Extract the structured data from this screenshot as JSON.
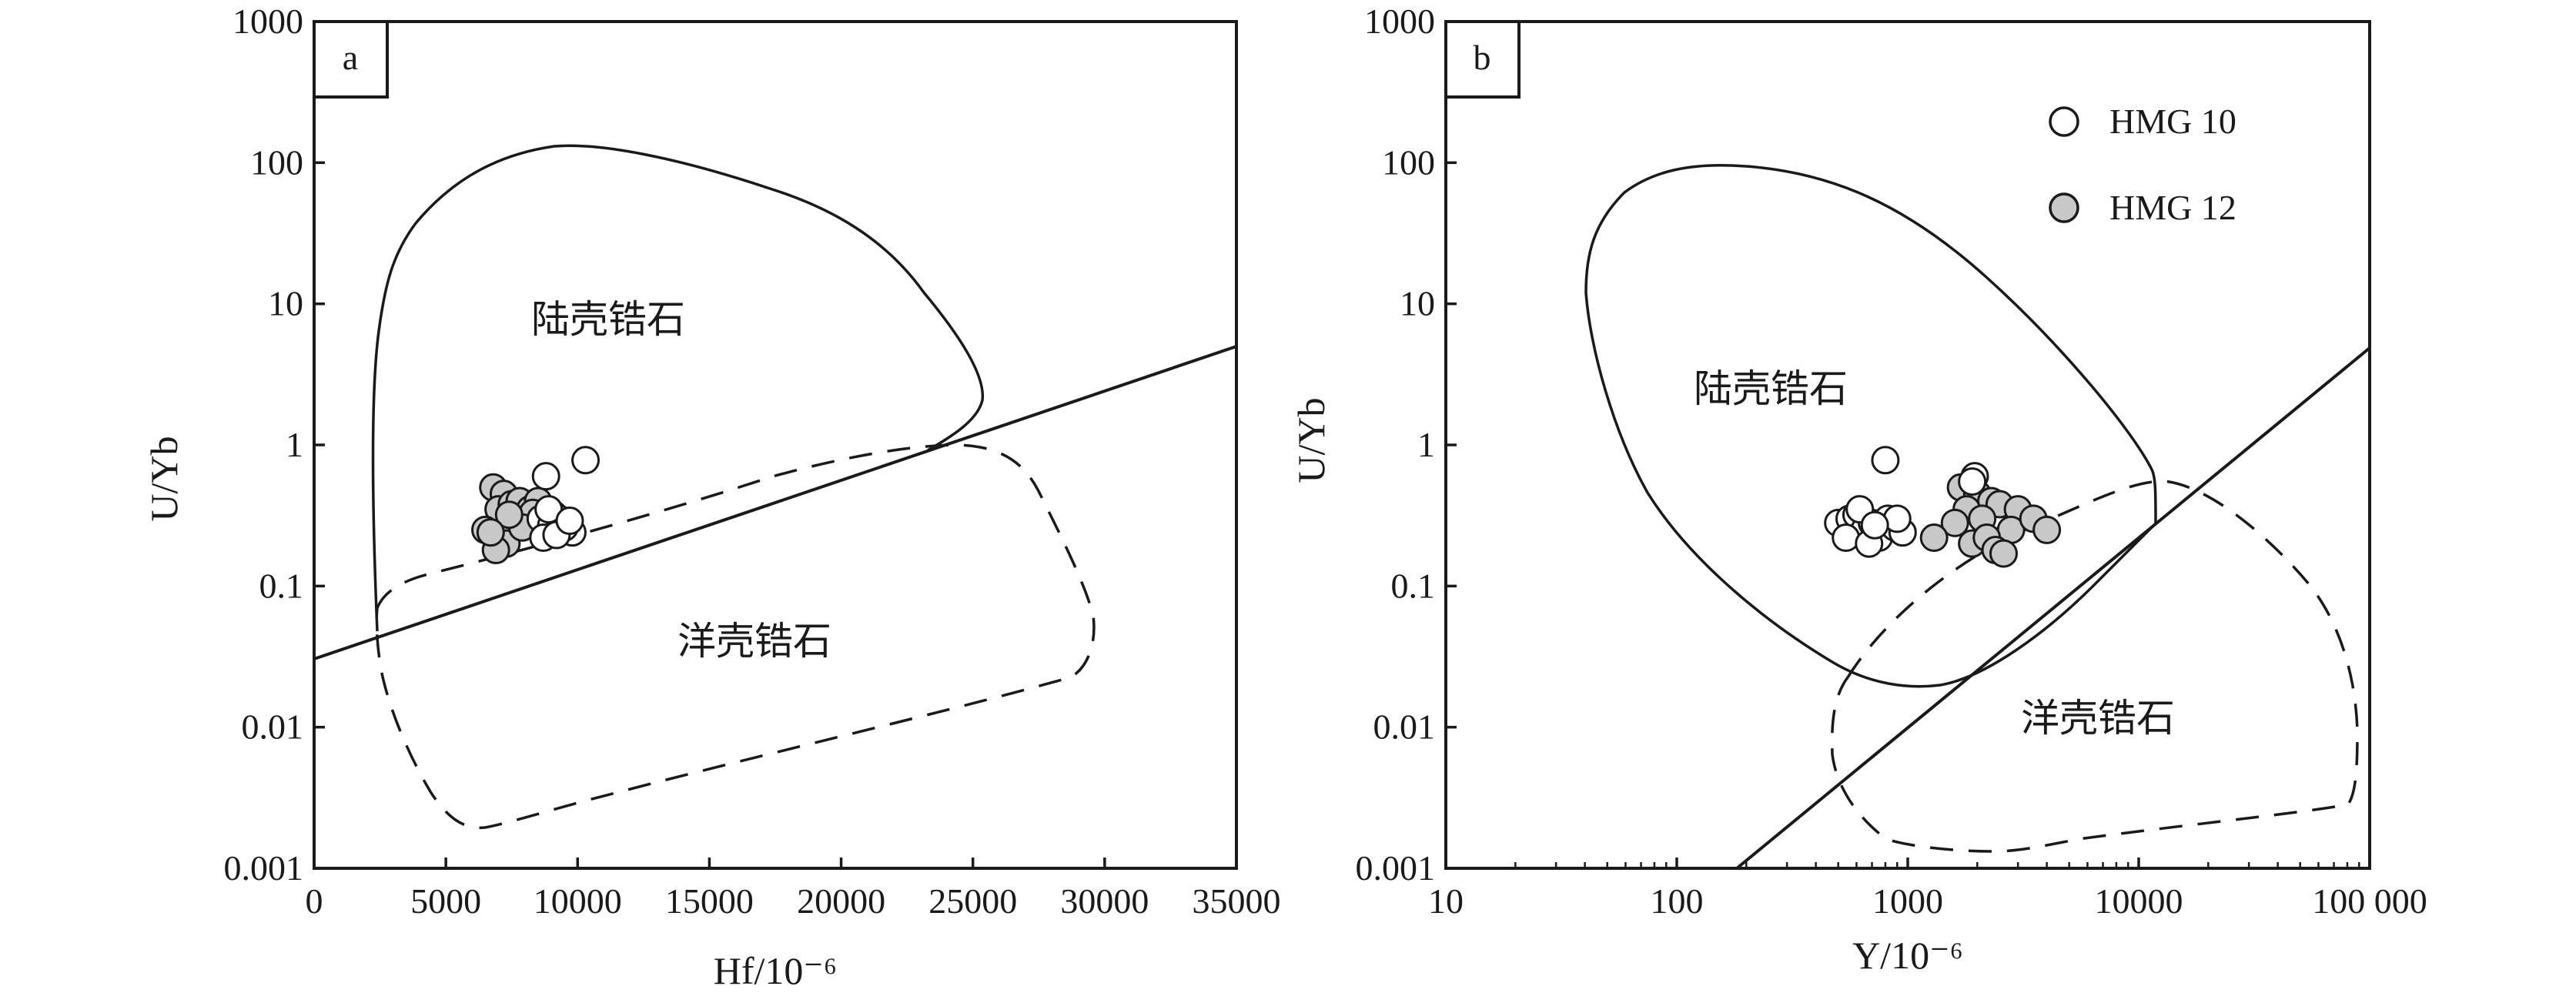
{
  "chart_data": [
    {
      "panel": "a",
      "type": "scatter",
      "xlabel": "Hf/10⁻⁶",
      "ylabel": "U/Yb",
      "x_scale": "linear",
      "y_scale": "log",
      "xlim": [
        0,
        35000
      ],
      "ylim": [
        0.001,
        1000
      ],
      "x_ticks": [
        "0",
        "5000",
        "10000",
        "15000",
        "20000",
        "25000",
        "30000",
        "35000"
      ],
      "y_ticks": [
        "0.001",
        "0.01",
        "0.1",
        "1",
        "10",
        "100",
        "1000"
      ],
      "regions": [
        {
          "label": "陆壳锆石",
          "style": "solid"
        },
        {
          "label": "洋壳锆石",
          "style": "dashed"
        }
      ],
      "series": [
        {
          "name": "HMG 10",
          "marker": "open-circle",
          "x": [
            10300,
            8800,
            8600,
            9100,
            9400,
            9600,
            9800,
            9000,
            8700,
            9300,
            9500,
            9200,
            8900,
            9700
          ],
          "y": [
            0.78,
            0.6,
            0.3,
            0.32,
            0.28,
            0.25,
            0.24,
            0.27,
            0.22,
            0.3,
            0.26,
            0.23,
            0.35,
            0.29
          ]
        },
        {
          "name": "HMG 12",
          "marker": "filled-circle",
          "x": [
            6800,
            7200,
            7000,
            7500,
            7800,
            8200,
            7600,
            6500,
            7100,
            8000,
            8500,
            7300,
            6900,
            8300,
            7900,
            8700,
            7400,
            6700
          ],
          "y": [
            0.5,
            0.45,
            0.35,
            0.38,
            0.4,
            0.35,
            0.3,
            0.25,
            0.22,
            0.28,
            0.4,
            0.2,
            0.18,
            0.33,
            0.26,
            0.3,
            0.32,
            0.24
          ]
        }
      ]
    },
    {
      "panel": "b",
      "type": "scatter",
      "xlabel": "Y/10⁻⁶",
      "ylabel": "U/Yb",
      "x_scale": "log",
      "y_scale": "log",
      "xlim": [
        10,
        100000
      ],
      "ylim": [
        0.001,
        1000
      ],
      "x_ticks": [
        "10",
        "100",
        "1000",
        "10000",
        "100 000"
      ],
      "y_ticks": [
        "0.001",
        "0.01",
        "0.1",
        "1",
        "10",
        "100",
        "1000"
      ],
      "regions": [
        {
          "label": "陆壳锆石",
          "style": "solid"
        },
        {
          "label": "洋壳锆石",
          "style": "dashed"
        }
      ],
      "legend": {
        "placement": "top-right"
      },
      "series": [
        {
          "name": "HMG 10",
          "marker": "open-circle",
          "x": [
            800,
            500,
            560,
            600,
            650,
            700,
            750,
            820,
            880,
            950,
            620,
            540,
            680,
            900,
            720,
            1950,
            1900
          ],
          "y": [
            0.78,
            0.28,
            0.3,
            0.32,
            0.25,
            0.28,
            0.22,
            0.3,
            0.26,
            0.24,
            0.35,
            0.22,
            0.2,
            0.3,
            0.27,
            0.6,
            0.55
          ]
        },
        {
          "name": "HMG 12",
          "marker": "filled-circle",
          "x": [
            1700,
            2000,
            2300,
            1800,
            2500,
            3000,
            2100,
            1600,
            2800,
            1900,
            2200,
            3500,
            4000,
            2400,
            1300,
            2600
          ],
          "y": [
            0.5,
            0.45,
            0.4,
            0.35,
            0.38,
            0.35,
            0.3,
            0.28,
            0.25,
            0.2,
            0.22,
            0.3,
            0.25,
            0.18,
            0.22,
            0.17
          ]
        }
      ]
    }
  ],
  "figure": {
    "panels": [
      {
        "letter": "a",
        "upper_region_label": "陆壳锆石",
        "lower_region_label": "洋壳锆石"
      },
      {
        "letter": "b",
        "upper_region_label": "陆壳锆石",
        "lower_region_label": "洋壳锆石"
      }
    ],
    "legend": {
      "items": [
        {
          "label": "HMG 10"
        },
        {
          "label": "HMG 12"
        }
      ]
    },
    "colors": {
      "axis": "#1a1a1a",
      "filled_marker": "#c8c8c8",
      "open_marker": "#ffffff",
      "line": "#1a1a1a"
    }
  }
}
